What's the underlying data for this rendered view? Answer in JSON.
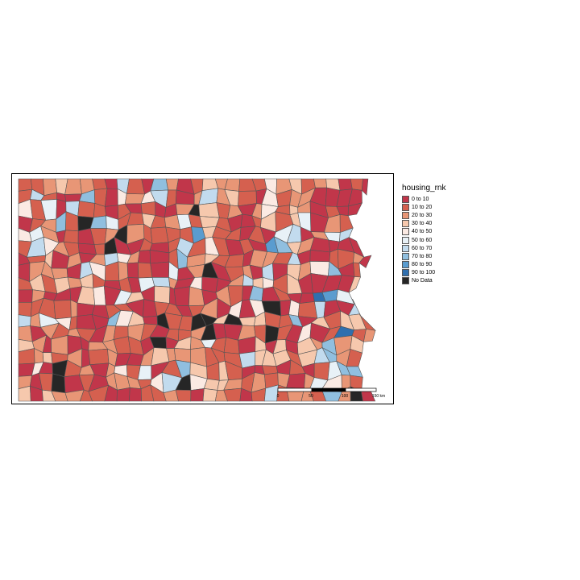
{
  "legend": {
    "title": "housing_rnk",
    "classes": [
      {
        "label": "0 to 10",
        "color": "#c1364a"
      },
      {
        "label": "10 to 20",
        "color": "#d5604f"
      },
      {
        "label": "20 to 30",
        "color": "#e89676"
      },
      {
        "label": "30 to 40",
        "color": "#f6c8ad"
      },
      {
        "label": "40 to 50",
        "color": "#fbeae3"
      },
      {
        "label": "50 to 60",
        "color": "#e8f1f7"
      },
      {
        "label": "60 to 70",
        "color": "#c2dbee"
      },
      {
        "label": "70 to 80",
        "color": "#90bfdf"
      },
      {
        "label": "80 to 90",
        "color": "#5a9ccf"
      },
      {
        "label": "90 to 100",
        "color": "#2f6fae"
      },
      {
        "label": "No Data",
        "color": "#262626"
      }
    ]
  },
  "scale_bar": {
    "labels": [
      "0",
      "50",
      "100",
      "150 km"
    ]
  },
  "colors": {
    "border": "#555555",
    "frame": "#000000"
  }
}
